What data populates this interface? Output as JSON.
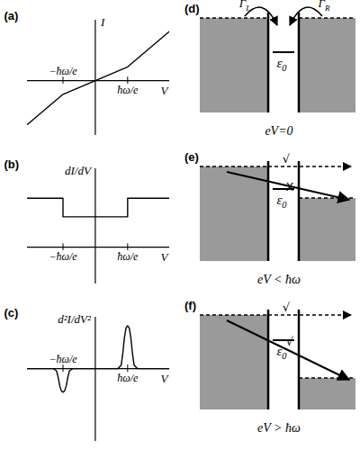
{
  "chart_data": [
    {
      "type": "line",
      "title": "(a)",
      "xlabel": "V",
      "ylabel": "I",
      "color": "#000000",
      "x": [
        -2.1,
        -1,
        0,
        1,
        2.3
      ],
      "values": [
        -1.6,
        -0.5,
        0,
        0.5,
        1.8
      ],
      "xlim": [
        -2.1,
        2.3
      ],
      "ylim": [
        -2,
        2.2
      ],
      "xticks": [
        {
          "value": -1,
          "label": "−ħω/e"
        },
        {
          "value": 1,
          "label": "ħω/e"
        }
      ],
      "yticks": [],
      "tick_labels": "x"
    },
    {
      "type": "line",
      "title": "(b)",
      "xlabel": "V",
      "ylabel": "dI/dV",
      "color": "#000000",
      "x": [
        -2.1,
        -1,
        -1,
        1,
        1,
        2.3
      ],
      "values": [
        1,
        1,
        0.62,
        0.62,
        1,
        1
      ],
      "xlim": [
        -2.1,
        2.3
      ],
      "ylim": [
        -0.75,
        1.6
      ],
      "xticks": [
        {
          "value": -1,
          "label": "−ħω/e"
        },
        {
          "value": 1,
          "label": "ħω/e"
        }
      ],
      "yticks": [],
      "tick_labels": "x"
    },
    {
      "type": "line",
      "title": "(c)",
      "xlabel": "V",
      "ylabel": "d²I/dV²",
      "color": "#000000",
      "x": [
        -2.1,
        -1.3,
        -1.2,
        -1.15,
        -1.1,
        -1.05,
        -1,
        -0.95,
        -0.9,
        -0.85,
        -0.8,
        -0.7,
        0.7,
        0.8,
        0.85,
        0.9,
        0.95,
        1,
        1.05,
        1.1,
        1.15,
        1.2,
        1.3,
        2.3
      ],
      "values": [
        0,
        0,
        -0.05,
        -0.2,
        -0.4,
        -0.52,
        -0.55,
        -0.52,
        -0.4,
        -0.2,
        -0.05,
        0,
        0,
        0.08,
        0.35,
        0.72,
        0.95,
        1,
        0.95,
        0.72,
        0.35,
        0.08,
        0,
        0
      ],
      "xlim": [
        -2.1,
        2.3
      ],
      "ylim": [
        -1.7,
        1.2
      ],
      "xticks": [
        {
          "value": -1,
          "label": "−ħω/e"
        },
        {
          "value": 1,
          "label": "ħω/e"
        }
      ],
      "yticks": [],
      "tick_labels": "x"
    }
  ],
  "diagrams": [
    {
      "label": "(d)",
      "caption": "eV=0",
      "level": {
        "symbol": "ε",
        "subscript": "0"
      },
      "rates": [
        {
          "symbol": "Γ",
          "subscript": "L"
        },
        {
          "symbol": "Γ",
          "subscript": "R"
        }
      ]
    },
    {
      "label": "(e)",
      "caption": "eV < ħω",
      "level": {
        "symbol": "ε",
        "subscript": "0"
      },
      "elastic": "√",
      "inelastic": "X"
    },
    {
      "label": "(f)",
      "caption": "eV > ħω",
      "level": {
        "symbol": "ε",
        "subscript": "0"
      },
      "elastic": "√",
      "inelastic": "√"
    }
  ]
}
